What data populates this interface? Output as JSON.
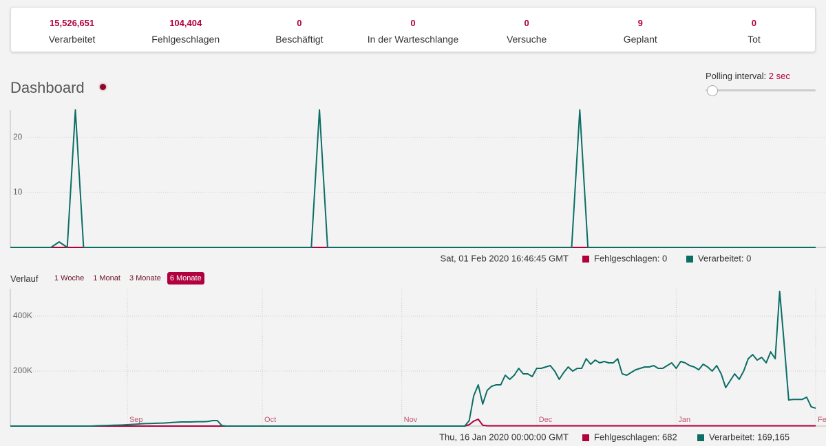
{
  "stats": [
    {
      "value": "15,526,651",
      "label": "Verarbeitet"
    },
    {
      "value": "104,404",
      "label": "Fehlgeschlagen"
    },
    {
      "value": "0",
      "label": "Beschäftigt"
    },
    {
      "value": "0",
      "label": "In der Warteschlange"
    },
    {
      "value": "0",
      "label": "Versuche"
    },
    {
      "value": "9",
      "label": "Geplant"
    },
    {
      "value": "0",
      "label": "Tot"
    }
  ],
  "header": {
    "title": "Dashboard",
    "polling_label": "Polling interval:",
    "polling_value": "2 sec"
  },
  "chart_data": [
    {
      "type": "line",
      "ylim": [
        0,
        25
      ],
      "yticks": [
        10,
        20
      ],
      "grid": true,
      "series": [
        {
          "name": "Fehlgeschlagen",
          "color": "#b1003e",
          "values": [
            0,
            0,
            0,
            0,
            0,
            0,
            0,
            0,
            0,
            0,
            0,
            0,
            0,
            0,
            0,
            0,
            0,
            0,
            0,
            0,
            0,
            0,
            0,
            0,
            0,
            0,
            0,
            0,
            0,
            0,
            0,
            0,
            0,
            0,
            0,
            0,
            0,
            0,
            0,
            0,
            0,
            0,
            0,
            0,
            0,
            0,
            0,
            0,
            0,
            0,
            0,
            0,
            0,
            0,
            0,
            0,
            0,
            0,
            0,
            0,
            0,
            0,
            0,
            0,
            0,
            0,
            0,
            0,
            0,
            0,
            0,
            0,
            0,
            0,
            0,
            0,
            0,
            0,
            0,
            0,
            0,
            0,
            0,
            0,
            0,
            0,
            0,
            0,
            0,
            0,
            0,
            0,
            0,
            0,
            0,
            0,
            0,
            0,
            0,
            0
          ]
        },
        {
          "name": "Verarbeitet",
          "color": "#0b6e65",
          "values": [
            0,
            0,
            0,
            0,
            0,
            0,
            1,
            0,
            25,
            0,
            0,
            0,
            0,
            0,
            0,
            0,
            0,
            0,
            0,
            0,
            0,
            0,
            0,
            0,
            0,
            0,
            0,
            0,
            0,
            0,
            0,
            0,
            0,
            0,
            0,
            0,
            0,
            0,
            25,
            0,
            0,
            0,
            0,
            0,
            0,
            0,
            0,
            0,
            0,
            0,
            0,
            0,
            0,
            0,
            0,
            0,
            0,
            0,
            0,
            0,
            0,
            0,
            0,
            0,
            0,
            0,
            0,
            0,
            0,
            0,
            25,
            0,
            0,
            0,
            0,
            0,
            0,
            0,
            0,
            0,
            0,
            0,
            0,
            0,
            0,
            0,
            0,
            0,
            0,
            0,
            0,
            0,
            0,
            0,
            0,
            0,
            0,
            0,
            0,
            0
          ]
        }
      ],
      "hover": {
        "date": "Sat, 01 Feb 2020 16:46:45 GMT",
        "items": [
          "Fehlgeschlagen: 0",
          "Verarbeitet: 0"
        ]
      }
    },
    {
      "type": "line",
      "title": "Verlauf",
      "ranges": [
        {
          "label": "1 Woche",
          "active": false
        },
        {
          "label": "1 Monat",
          "active": false
        },
        {
          "label": "3 Monate",
          "active": false
        },
        {
          "label": "6 Monate",
          "active": true
        }
      ],
      "xlim": [
        0,
        179
      ],
      "xticks": [
        {
          "value": 26,
          "label": "Sep"
        },
        {
          "value": 56,
          "label": "Oct"
        },
        {
          "value": 87,
          "label": "Nov"
        },
        {
          "value": 117,
          "label": "Dec"
        },
        {
          "value": 148,
          "label": "Jan"
        },
        {
          "value": 179,
          "label": "Fe"
        }
      ],
      "ylim": [
        0,
        500000
      ],
      "yticks": [
        {
          "value": 200000,
          "label": "200K"
        },
        {
          "value": 400000,
          "label": "400K"
        }
      ],
      "grid": true,
      "series": [
        {
          "name": "Fehlgeschlagen",
          "color": "#b1003e",
          "values": [
            0,
            0,
            0,
            0,
            0,
            0,
            0,
            0,
            0,
            0,
            0,
            0,
            0,
            0,
            0,
            0,
            0,
            0,
            0,
            0,
            0,
            0,
            0,
            0,
            0,
            0,
            0,
            0,
            0,
            0,
            0,
            0,
            0,
            0,
            0,
            0,
            0,
            0,
            0,
            0,
            0,
            0,
            0,
            0,
            0,
            0,
            0,
            0,
            0,
            0,
            0,
            0,
            0,
            0,
            0,
            0,
            0,
            0,
            0,
            0,
            0,
            0,
            0,
            0,
            0,
            0,
            0,
            0,
            0,
            0,
            0,
            0,
            0,
            0,
            0,
            0,
            0,
            0,
            0,
            0,
            0,
            0,
            0,
            0,
            0,
            0,
            0,
            0,
            0,
            0,
            0,
            0,
            0,
            0,
            0,
            0,
            0,
            0,
            0,
            0,
            0,
            0,
            5000,
            18000,
            25000,
            3000,
            1000,
            1000,
            1000,
            1000,
            1000,
            1000,
            1000,
            1000,
            1000,
            1000,
            1000,
            1000,
            1000,
            1000,
            1000,
            1000,
            1000,
            1000,
            1000,
            1000,
            1000,
            1000,
            1000,
            1000,
            1000,
            1000,
            1000,
            1000,
            1000,
            1000,
            1000,
            1000,
            1000,
            1000,
            1000,
            1000,
            1000,
            1000,
            1000,
            1000,
            1000,
            1000,
            1000,
            1000,
            1000,
            1000,
            1000,
            1000,
            1000,
            1000,
            1000,
            1000,
            1000,
            1000,
            1000,
            1000,
            1000,
            1000,
            1000,
            1000,
            1000,
            1000,
            1000,
            1000,
            1000,
            1000,
            1000,
            1000,
            1000,
            1000,
            1000,
            1000,
            1000,
            1000
          ]
        },
        {
          "name": "Verarbeitet",
          "color": "#0b6e65",
          "values": [
            0,
            0,
            0,
            0,
            0,
            0,
            0,
            0,
            0,
            0,
            0,
            0,
            0,
            0,
            0,
            0,
            0,
            0,
            0,
            1000,
            1500,
            2000,
            2500,
            3000,
            3500,
            4000,
            5000,
            6000,
            7000,
            8000,
            9000,
            9500,
            10000,
            10500,
            11000,
            12000,
            13000,
            14000,
            15000,
            15000,
            15000,
            15500,
            16000,
            16000,
            17000,
            20000,
            20000,
            2000,
            0,
            0,
            0,
            0,
            0,
            0,
            0,
            0,
            0,
            0,
            0,
            0,
            0,
            0,
            0,
            0,
            0,
            0,
            0,
            0,
            0,
            0,
            0,
            0,
            0,
            0,
            0,
            0,
            0,
            0,
            0,
            0,
            0,
            0,
            0,
            0,
            0,
            0,
            0,
            0,
            0,
            0,
            0,
            0,
            0,
            0,
            0,
            0,
            0,
            0,
            0,
            0,
            0,
            0,
            20000,
            110000,
            150000,
            80000,
            130000,
            145000,
            150000,
            150000,
            185000,
            170000,
            185000,
            210000,
            190000,
            190000,
            180000,
            210000,
            210000,
            215000,
            220000,
            200000,
            170000,
            195000,
            215000,
            200000,
            210000,
            210000,
            245000,
            225000,
            240000,
            230000,
            235000,
            230000,
            230000,
            245000,
            190000,
            185000,
            195000,
            205000,
            210000,
            215000,
            215000,
            220000,
            210000,
            210000,
            220000,
            230000,
            210000,
            235000,
            230000,
            220000,
            215000,
            205000,
            225000,
            215000,
            200000,
            220000,
            190000,
            140000,
            165000,
            190000,
            170000,
            200000,
            245000,
            260000,
            240000,
            250000,
            230000,
            270000,
            245000,
            490000,
            300000,
            95000,
            97000,
            97000,
            97000,
            105000,
            70000,
            65000
          ]
        }
      ],
      "hover": {
        "date": "Thu, 16 Jan 2020 00:00:00 GMT",
        "items": [
          "Fehlgeschlagen: 682",
          "Verarbeitet: 169,165"
        ]
      }
    }
  ]
}
